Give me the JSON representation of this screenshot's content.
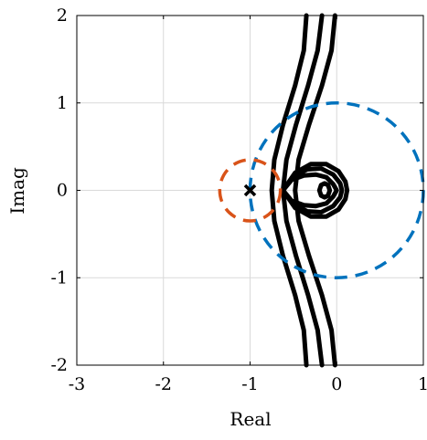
{
  "chart_data": {
    "type": "line",
    "title": "",
    "xlabel": "Real",
    "ylabel": "Imag",
    "xlim": [
      -3,
      1
    ],
    "ylim": [
      -2,
      2
    ],
    "xticks": [
      -3,
      -2,
      -1,
      0,
      1
    ],
    "yticks": [
      -2,
      -1,
      0,
      1,
      2
    ],
    "xtick_labels": [
      "-3",
      "-2",
      "-1",
      "0",
      "1"
    ],
    "ytick_labels": [
      "-2",
      "-1",
      "0",
      "1",
      "2"
    ],
    "grid": true,
    "legend": null,
    "colors": {
      "nyquist": "#000000",
      "unit_circle": "#0072BD",
      "critical_circle": "#D95319",
      "grid": "#d9d9d9",
      "axes": "#000000"
    },
    "series": [
      {
        "type": "curve",
        "style": "solid",
        "points": [
          [
            -0.35,
            2.0
          ],
          [
            -0.38,
            1.6
          ],
          [
            -0.48,
            1.2
          ],
          [
            -0.62,
            0.75
          ],
          [
            -0.72,
            0.35
          ],
          [
            -0.75,
            0.0
          ],
          [
            -0.72,
            -0.35
          ],
          [
            -0.62,
            -0.75
          ],
          [
            -0.48,
            -1.2
          ],
          [
            -0.38,
            -1.6
          ],
          [
            -0.35,
            -2.0
          ]
        ]
      },
      {
        "type": "curve",
        "style": "solid",
        "points": [
          [
            -0.17,
            2.0
          ],
          [
            -0.22,
            1.6
          ],
          [
            -0.33,
            1.2
          ],
          [
            -0.47,
            0.75
          ],
          [
            -0.58,
            0.35
          ],
          [
            -0.62,
            0.0
          ],
          [
            -0.58,
            -0.35
          ],
          [
            -0.47,
            -0.75
          ],
          [
            -0.33,
            -1.2
          ],
          [
            -0.22,
            -1.6
          ],
          [
            -0.17,
            -2.0
          ]
        ]
      },
      {
        "type": "curve",
        "style": "solid",
        "points": [
          [
            -0.02,
            2.0
          ],
          [
            -0.06,
            1.6
          ],
          [
            -0.17,
            1.2
          ],
          [
            -0.32,
            0.75
          ],
          [
            -0.44,
            0.35
          ],
          [
            -0.48,
            0.0
          ],
          [
            -0.44,
            -0.35
          ],
          [
            -0.32,
            -0.75
          ],
          [
            -0.17,
            -1.2
          ],
          [
            -0.06,
            -1.6
          ],
          [
            -0.02,
            -2.0
          ]
        ]
      },
      {
        "type": "curve",
        "style": "solid",
        "points": [
          [
            -0.62,
            0.0
          ],
          [
            -0.52,
            0.12
          ],
          [
            -0.38,
            0.17
          ],
          [
            -0.24,
            0.18
          ],
          [
            -0.12,
            0.15
          ],
          [
            -0.04,
            0.07
          ],
          [
            0.0,
            0.0
          ],
          [
            -0.04,
            -0.07
          ],
          [
            -0.12,
            -0.15
          ],
          [
            -0.24,
            -0.18
          ],
          [
            -0.38,
            -0.17
          ],
          [
            -0.52,
            -0.12
          ],
          [
            -0.62,
            0.0
          ]
        ]
      },
      {
        "type": "curve",
        "style": "solid",
        "points": [
          [
            -0.62,
            0.0
          ],
          [
            -0.5,
            0.16
          ],
          [
            -0.34,
            0.24
          ],
          [
            -0.18,
            0.25
          ],
          [
            -0.04,
            0.18
          ],
          [
            0.04,
            0.08
          ],
          [
            0.06,
            0.0
          ],
          [
            0.04,
            -0.08
          ],
          [
            -0.04,
            -0.18
          ],
          [
            -0.18,
            -0.25
          ],
          [
            -0.34,
            -0.24
          ],
          [
            -0.5,
            -0.16
          ],
          [
            -0.62,
            0.0
          ]
        ]
      },
      {
        "type": "curve",
        "style": "solid",
        "points": [
          [
            -0.62,
            0.0
          ],
          [
            -0.48,
            0.2
          ],
          [
            -0.3,
            0.3
          ],
          [
            -0.12,
            0.3
          ],
          [
            0.02,
            0.22
          ],
          [
            0.1,
            0.1
          ],
          [
            0.12,
            0.0
          ],
          [
            0.1,
            -0.1
          ],
          [
            0.02,
            -0.22
          ],
          [
            -0.12,
            -0.3
          ],
          [
            -0.3,
            -0.3
          ],
          [
            -0.48,
            -0.2
          ],
          [
            -0.62,
            0.0
          ]
        ]
      },
      {
        "type": "curve",
        "style": "solid",
        "points": [
          [
            -0.2,
            0.0
          ],
          [
            -0.18,
            0.06
          ],
          [
            -0.14,
            0.08
          ],
          [
            -0.1,
            0.06
          ],
          [
            -0.08,
            0.0
          ],
          [
            -0.1,
            -0.06
          ],
          [
            -0.14,
            -0.08
          ],
          [
            -0.18,
            -0.06
          ],
          [
            -0.2,
            0.0
          ]
        ]
      },
      {
        "type": "circle",
        "style": "dashed",
        "color_key": "unit_circle",
        "center": [
          0,
          0
        ],
        "radius": 1.0
      },
      {
        "type": "circle",
        "style": "dashed",
        "color_key": "critical_circle",
        "center": [
          -1,
          0
        ],
        "radius": 0.35
      },
      {
        "type": "marker",
        "marker": "x",
        "x": -1,
        "y": 0
      }
    ]
  }
}
